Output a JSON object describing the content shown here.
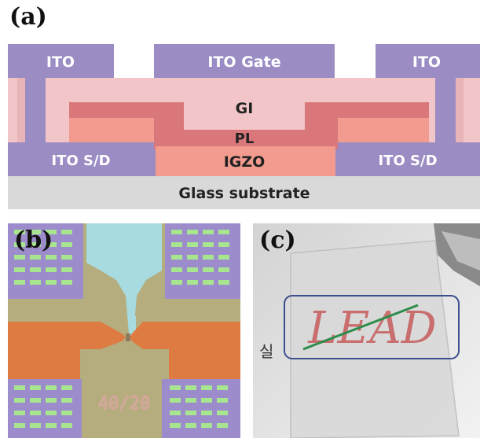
{
  "panels": {
    "a": {
      "label": "(a)",
      "layers": {
        "ito_left": "ITO",
        "ito_gate": "ITO Gate",
        "ito_right": "ITO",
        "gi": "GI",
        "pl": "PL",
        "igzo": "IGZO",
        "sd_left": "ITO S/D",
        "sd_right": "ITO S/D",
        "substrate": "Glass substrate"
      },
      "colors": {
        "ito": "#9b8cc4",
        "gi": "#f2c5c8",
        "pl": "#d9777b",
        "igzo": "#f29b8e",
        "substrate": "#d9d9d9"
      }
    },
    "b": {
      "label": "(b)",
      "device_text": "40/20",
      "colors": {
        "background": "#b5ad7e",
        "gate": "#a7dbe0",
        "source_drain": "#de7b43",
        "pad": "#9d8ccc",
        "via": "#a8e58f"
      }
    },
    "c": {
      "label": "(c)",
      "logo_text": "LEAD",
      "side_glyph": "실"
    }
  }
}
